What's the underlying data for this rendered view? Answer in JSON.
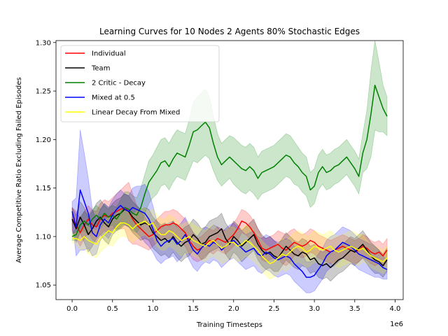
{
  "chart_data": {
    "type": "line",
    "title": "Learning Curves for 10 Nodes 2 Agents 80% Stochastic Edges",
    "xlabel": "Training Timesteps",
    "ylabel": "Average Competitive Ratio Excluding Failed Episodes",
    "x_offset_text": "1e6",
    "xlim": [
      -0.2,
      4.1
    ],
    "ylim": [
      1.035,
      1.302
    ],
    "x_ticks": [
      0.0,
      0.5,
      1.0,
      1.5,
      2.0,
      2.5,
      3.0,
      3.5,
      4.0
    ],
    "x_tick_labels": [
      "0.0",
      "0.5",
      "1.0",
      "1.5",
      "2.0",
      "2.5",
      "3.0",
      "3.5",
      "4.0"
    ],
    "y_ticks": [
      1.05,
      1.1,
      1.15,
      1.2,
      1.25,
      1.3
    ],
    "y_tick_labels": [
      "1.05",
      "1.10",
      "1.15",
      "1.20",
      "1.25",
      "1.30"
    ],
    "legend_position": "upper-left",
    "x": [
      0.0,
      0.05,
      0.1,
      0.15,
      0.2,
      0.25,
      0.3,
      0.35,
      0.4,
      0.45,
      0.5,
      0.55,
      0.6,
      0.65,
      0.7,
      0.75,
      0.8,
      0.85,
      0.9,
      0.95,
      1.0,
      1.05,
      1.1,
      1.15,
      1.2,
      1.25,
      1.3,
      1.35,
      1.4,
      1.45,
      1.5,
      1.55,
      1.6,
      1.65,
      1.7,
      1.75,
      1.8,
      1.85,
      1.9,
      1.95,
      2.0,
      2.05,
      2.1,
      2.15,
      2.2,
      2.25,
      2.3,
      2.35,
      2.4,
      2.45,
      2.5,
      2.55,
      2.6,
      2.65,
      2.7,
      2.75,
      2.8,
      2.85,
      2.9,
      2.95,
      3.0,
      3.05,
      3.1,
      3.15,
      3.2,
      3.25,
      3.3,
      3.35,
      3.4,
      3.45,
      3.5,
      3.55,
      3.6,
      3.65,
      3.7,
      3.75,
      3.8,
      3.85,
      3.9
    ],
    "series": [
      {
        "name": "Individual",
        "color": "#ff0000",
        "fill_opacity": 0.2,
        "values": [
          1.118,
          1.112,
          1.104,
          1.112,
          1.118,
          1.112,
          1.11,
          1.118,
          1.122,
          1.12,
          1.124,
          1.126,
          1.128,
          1.13,
          1.126,
          1.118,
          1.112,
          1.108,
          1.104,
          1.1,
          1.102,
          1.106,
          1.11,
          1.112,
          1.112,
          1.114,
          1.112,
          1.108,
          1.104,
          1.096,
          1.09,
          1.086,
          1.088,
          1.092,
          1.096,
          1.094,
          1.098,
          1.096,
          1.094,
          1.098,
          1.102,
          1.108,
          1.116,
          1.114,
          1.11,
          1.104,
          1.096,
          1.088,
          1.086,
          1.088,
          1.09,
          1.092,
          1.088,
          1.086,
          1.09,
          1.094,
          1.092,
          1.09,
          1.092,
          1.096,
          1.094,
          1.09,
          1.088,
          1.086,
          1.084,
          1.086,
          1.088,
          1.09,
          1.088,
          1.086,
          1.084,
          1.086,
          1.09,
          1.088,
          1.084,
          1.082,
          1.084,
          1.08,
          1.086
        ],
        "spread": [
          0.012,
          0.014,
          0.014,
          0.014,
          0.014,
          0.015,
          0.016,
          0.016,
          0.016,
          0.016,
          0.016,
          0.018,
          0.02,
          0.022,
          0.03,
          0.026,
          0.02,
          0.018,
          0.016,
          0.014,
          0.012,
          0.012,
          0.012,
          0.014,
          0.014,
          0.014,
          0.014,
          0.014,
          0.014,
          0.014,
          0.014,
          0.012,
          0.012,
          0.012,
          0.012,
          0.012,
          0.012,
          0.012,
          0.012,
          0.012,
          0.012,
          0.012,
          0.012,
          0.012,
          0.012,
          0.012,
          0.012,
          0.012,
          0.012,
          0.012,
          0.012,
          0.014,
          0.016,
          0.016,
          0.016,
          0.014,
          0.012,
          0.012,
          0.012,
          0.012,
          0.012,
          0.012,
          0.012,
          0.012,
          0.012,
          0.012,
          0.012,
          0.012,
          0.012,
          0.012,
          0.012,
          0.012,
          0.012,
          0.012,
          0.012,
          0.012,
          0.012,
          0.012,
          0.012
        ]
      },
      {
        "name": "Team",
        "color": "#000000",
        "fill_opacity": 0.2,
        "values": [
          1.118,
          1.108,
          1.12,
          1.112,
          1.102,
          1.108,
          1.116,
          1.12,
          1.114,
          1.11,
          1.118,
          1.122,
          1.124,
          1.128,
          1.126,
          1.12,
          1.116,
          1.112,
          1.114,
          1.112,
          1.104,
          1.1,
          1.096,
          1.098,
          1.094,
          1.1,
          1.094,
          1.09,
          1.094,
          1.096,
          1.102,
          1.098,
          1.092,
          1.094,
          1.1,
          1.102,
          1.104,
          1.108,
          1.098,
          1.092,
          1.1,
          1.096,
          1.09,
          1.094,
          1.098,
          1.102,
          1.092,
          1.086,
          1.082,
          1.084,
          1.08,
          1.078,
          1.084,
          1.09,
          1.086,
          1.082,
          1.08,
          1.084,
          1.082,
          1.076,
          1.078,
          1.072,
          1.07,
          1.072,
          1.068,
          1.072,
          1.076,
          1.078,
          1.082,
          1.086,
          1.084,
          1.088,
          1.092,
          1.086,
          1.08,
          1.076,
          1.074,
          1.07,
          1.076
        ],
        "spread": [
          0.012,
          0.014,
          0.016,
          0.018,
          0.018,
          0.018,
          0.018,
          0.018,
          0.018,
          0.018,
          0.016,
          0.016,
          0.016,
          0.016,
          0.016,
          0.016,
          0.016,
          0.016,
          0.016,
          0.016,
          0.016,
          0.016,
          0.016,
          0.016,
          0.016,
          0.016,
          0.016,
          0.016,
          0.016,
          0.016,
          0.016,
          0.016,
          0.016,
          0.016,
          0.016,
          0.016,
          0.016,
          0.016,
          0.016,
          0.016,
          0.016,
          0.016,
          0.016,
          0.016,
          0.016,
          0.016,
          0.016,
          0.016,
          0.016,
          0.016,
          0.016,
          0.014,
          0.014,
          0.014,
          0.014,
          0.014,
          0.014,
          0.014,
          0.014,
          0.014,
          0.014,
          0.014,
          0.014,
          0.014,
          0.014,
          0.014,
          0.014,
          0.014,
          0.014,
          0.014,
          0.014,
          0.014,
          0.014,
          0.014,
          0.014,
          0.014,
          0.012,
          0.012,
          0.012
        ]
      },
      {
        "name": "2 Critic - Decay",
        "color": "#008000",
        "fill_opacity": 0.2,
        "values": [
          1.1,
          1.102,
          1.112,
          1.116,
          1.112,
          1.118,
          1.122,
          1.118,
          1.124,
          1.12,
          1.122,
          1.118,
          1.124,
          1.13,
          1.128,
          1.124,
          1.122,
          1.13,
          1.144,
          1.156,
          1.162,
          1.168,
          1.176,
          1.178,
          1.172,
          1.18,
          1.186,
          1.184,
          1.182,
          1.194,
          1.208,
          1.21,
          1.214,
          1.218,
          1.212,
          1.196,
          1.182,
          1.174,
          1.178,
          1.182,
          1.178,
          1.174,
          1.17,
          1.168,
          1.172,
          1.168,
          1.16,
          1.166,
          1.168,
          1.17,
          1.172,
          1.176,
          1.18,
          1.184,
          1.182,
          1.176,
          1.172,
          1.166,
          1.162,
          1.148,
          1.152,
          1.166,
          1.172,
          1.166,
          1.168,
          1.172,
          1.174,
          1.178,
          1.182,
          1.176,
          1.17,
          1.162,
          1.186,
          1.2,
          1.226,
          1.256,
          1.244,
          1.232,
          1.224
        ],
        "spread": [
          0.004,
          0.006,
          0.008,
          0.01,
          0.01,
          0.01,
          0.01,
          0.01,
          0.01,
          0.01,
          0.01,
          0.012,
          0.014,
          0.016,
          0.018,
          0.018,
          0.018,
          0.02,
          0.02,
          0.022,
          0.022,
          0.024,
          0.024,
          0.024,
          0.024,
          0.024,
          0.024,
          0.024,
          0.024,
          0.026,
          0.03,
          0.034,
          0.034,
          0.034,
          0.032,
          0.028,
          0.024,
          0.022,
          0.022,
          0.022,
          0.024,
          0.024,
          0.024,
          0.024,
          0.024,
          0.024,
          0.022,
          0.022,
          0.022,
          0.022,
          0.022,
          0.022,
          0.022,
          0.022,
          0.022,
          0.022,
          0.02,
          0.02,
          0.02,
          0.018,
          0.018,
          0.018,
          0.018,
          0.018,
          0.018,
          0.018,
          0.018,
          0.018,
          0.018,
          0.018,
          0.018,
          0.018,
          0.02,
          0.03,
          0.044,
          0.046,
          0.036,
          0.024,
          0.02
        ]
      },
      {
        "name": "Mixed at 0.5",
        "color": "#0000ff",
        "fill_opacity": 0.2,
        "values": [
          1.126,
          1.11,
          1.148,
          1.136,
          1.124,
          1.104,
          1.1,
          1.112,
          1.118,
          1.114,
          1.122,
          1.128,
          1.132,
          1.128,
          1.126,
          1.13,
          1.128,
          1.126,
          1.124,
          1.118,
          1.108,
          1.096,
          1.09,
          1.094,
          1.096,
          1.098,
          1.092,
          1.096,
          1.102,
          1.094,
          1.086,
          1.082,
          1.088,
          1.092,
          1.09,
          1.094,
          1.092,
          1.086,
          1.09,
          1.094,
          1.096,
          1.092,
          1.088,
          1.084,
          1.086,
          1.088,
          1.082,
          1.08,
          1.084,
          1.082,
          1.078,
          1.076,
          1.078,
          1.08,
          1.078,
          1.072,
          1.068,
          1.064,
          1.058,
          1.058,
          1.06,
          1.066,
          1.072,
          1.08,
          1.084,
          1.086,
          1.09,
          1.094,
          1.092,
          1.09,
          1.086,
          1.082,
          1.08,
          1.078,
          1.076,
          1.074,
          1.072,
          1.068,
          1.066
        ],
        "spread": [
          0.01,
          0.03,
          0.062,
          0.05,
          0.036,
          0.024,
          0.018,
          0.016,
          0.016,
          0.016,
          0.016,
          0.016,
          0.016,
          0.016,
          0.016,
          0.02,
          0.024,
          0.026,
          0.03,
          0.028,
          0.024,
          0.02,
          0.018,
          0.018,
          0.018,
          0.018,
          0.018,
          0.018,
          0.018,
          0.018,
          0.018,
          0.018,
          0.018,
          0.018,
          0.018,
          0.018,
          0.018,
          0.018,
          0.018,
          0.018,
          0.018,
          0.018,
          0.018,
          0.018,
          0.018,
          0.018,
          0.018,
          0.018,
          0.018,
          0.018,
          0.018,
          0.018,
          0.018,
          0.018,
          0.018,
          0.018,
          0.018,
          0.018,
          0.016,
          0.016,
          0.016,
          0.016,
          0.016,
          0.016,
          0.016,
          0.016,
          0.016,
          0.016,
          0.016,
          0.016,
          0.016,
          0.016,
          0.016,
          0.016,
          0.016,
          0.016,
          0.014,
          0.012,
          0.01
        ]
      },
      {
        "name": "Linear Decay From Mixed",
        "color": "#ffff00",
        "fill_opacity": 0.2,
        "values": [
          1.098,
          1.098,
          1.096,
          1.1,
          1.096,
          1.094,
          1.092,
          1.098,
          1.102,
          1.106,
          1.104,
          1.11,
          1.114,
          1.114,
          1.112,
          1.108,
          1.112,
          1.114,
          1.116,
          1.112,
          1.114,
          1.106,
          1.102,
          1.102,
          1.106,
          1.104,
          1.1,
          1.096,
          1.098,
          1.1,
          1.096,
          1.094,
          1.092,
          1.09,
          1.094,
          1.096,
          1.092,
          1.088,
          1.09,
          1.094,
          1.094,
          1.09,
          1.092,
          1.096,
          1.094,
          1.09,
          1.086,
          1.08,
          1.076,
          1.072,
          1.074,
          1.078,
          1.082,
          1.08,
          1.084,
          1.088,
          1.09,
          1.088,
          1.084,
          1.086,
          1.09,
          1.088,
          1.086,
          1.088,
          1.09,
          1.086,
          1.084,
          1.086,
          1.088,
          1.09,
          1.088,
          1.086,
          1.088,
          1.084,
          1.08,
          1.078,
          1.076,
          1.074,
          1.078
        ],
        "spread": [
          0.004,
          0.006,
          0.01,
          0.012,
          0.014,
          0.014,
          0.014,
          0.014,
          0.014,
          0.014,
          0.014,
          0.014,
          0.014,
          0.014,
          0.014,
          0.014,
          0.014,
          0.014,
          0.014,
          0.014,
          0.014,
          0.016,
          0.016,
          0.016,
          0.016,
          0.016,
          0.016,
          0.016,
          0.016,
          0.016,
          0.016,
          0.016,
          0.016,
          0.016,
          0.016,
          0.016,
          0.016,
          0.016,
          0.016,
          0.016,
          0.016,
          0.016,
          0.016,
          0.016,
          0.016,
          0.016,
          0.016,
          0.016,
          0.016,
          0.016,
          0.016,
          0.016,
          0.016,
          0.016,
          0.016,
          0.016,
          0.016,
          0.016,
          0.016,
          0.016,
          0.016,
          0.016,
          0.016,
          0.016,
          0.016,
          0.016,
          0.016,
          0.016,
          0.016,
          0.016,
          0.016,
          0.016,
          0.014,
          0.012,
          0.012,
          0.012,
          0.012,
          0.012,
          0.012
        ]
      }
    ]
  }
}
